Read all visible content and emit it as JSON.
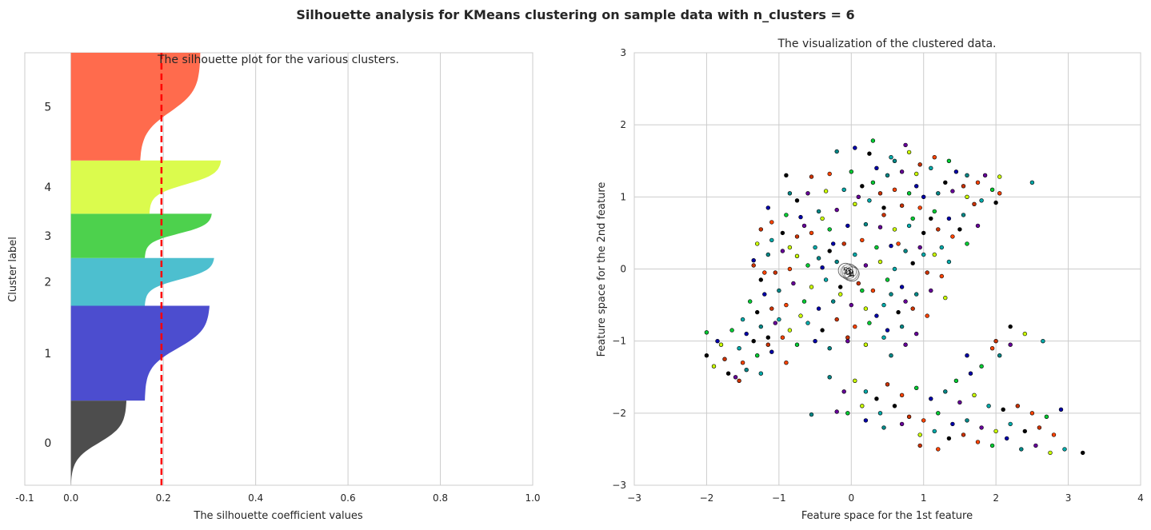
{
  "figure": {
    "suptitle": "Silhouette analysis for KMeans clustering on sample data with n_clusters = 6"
  },
  "chart_data": [
    {
      "type": "area",
      "title": "The silhouette plot for the various clusters.",
      "xlabel": "The silhouette coefficient values",
      "ylabel": "Cluster label",
      "xlim": [
        -0.1,
        1.0
      ],
      "ylim": [
        0,
        470
      ],
      "xticks": [
        -0.1,
        0.0,
        0.2,
        0.4,
        0.6,
        0.8,
        1.0
      ],
      "xtick_labels": [
        "-0.1",
        "0.0",
        "0.2",
        "0.4",
        "0.6",
        "0.8",
        "1.0"
      ],
      "grid": true,
      "average_silhouette": 0.196,
      "clusters": [
        {
          "label": "0",
          "y_lower": 0,
          "y_upper": 92,
          "color": "#4d4d4d",
          "min": 0.0,
          "max": 0.12,
          "knee": 0.5
        },
        {
          "label": "1",
          "y_lower": 92,
          "y_upper": 195,
          "color": "#4c4dcf",
          "min": 0.16,
          "max": 0.3,
          "knee": 0.55
        },
        {
          "label": "2",
          "y_lower": 195,
          "y_upper": 247,
          "color": "#4dbfcf",
          "min": 0.16,
          "max": 0.31,
          "knee": 0.55
        },
        {
          "label": "3",
          "y_lower": 247,
          "y_upper": 295,
          "color": "#4dd14d",
          "min": 0.16,
          "max": 0.305,
          "knee": 0.55
        },
        {
          "label": "4",
          "y_lower": 295,
          "y_upper": 353,
          "color": "#dbfb4d",
          "min": 0.17,
          "max": 0.325,
          "knee": 0.55
        },
        {
          "label": "5",
          "y_lower": 353,
          "y_upper": 470,
          "color": "#ff6b4d",
          "min": 0.15,
          "max": 0.28,
          "knee": 0.45
        }
      ]
    },
    {
      "type": "scatter",
      "title": "The visualization of the clustered data.",
      "xlabel": "Feature space for the 1st feature",
      "ylabel": "Feature space for the 2nd feature",
      "xlim": [
        -3,
        4
      ],
      "ylim": [
        -3,
        3
      ],
      "xticks": [
        -3,
        -2,
        -1,
        0,
        1,
        2,
        3,
        4
      ],
      "xtick_labels": [
        "−3",
        "−2",
        "−1",
        "0",
        "1",
        "2",
        "3",
        "4"
      ],
      "yticks": [
        -3,
        -2,
        -1,
        0,
        1,
        2,
        3
      ],
      "ytick_labels": [
        "−3",
        "−2",
        "−1",
        "0",
        "1",
        "2",
        "3"
      ],
      "grid": true,
      "point_colors": [
        "#000000",
        "#0000aa",
        "#00aaaa",
        "#00cc33",
        "#ccff00",
        "#ff4400",
        "#660099",
        "#cc3300",
        "#008888"
      ],
      "centers": [
        {
          "label": "0",
          "x": -0.05,
          "y": -0.04
        },
        {
          "label": "1",
          "x": -0.02,
          "y": -0.06
        },
        {
          "label": "2",
          "x": 0.0,
          "y": -0.05
        },
        {
          "label": "3",
          "x": -0.03,
          "y": -0.03
        },
        {
          "label": "4",
          "x": 0.01,
          "y": -0.07
        },
        {
          "label": "5",
          "x": -0.08,
          "y": -0.02
        }
      ],
      "points": [
        [
          0.3,
          1.78
        ],
        [
          0.05,
          1.68
        ],
        [
          -0.2,
          1.63
        ],
        [
          0.75,
          1.72
        ],
        [
          0.8,
          1.62
        ],
        [
          0.55,
          1.55
        ],
        [
          0.25,
          1.6
        ],
        [
          0.95,
          1.45
        ],
        [
          1.15,
          1.55
        ],
        [
          1.35,
          1.5
        ],
        [
          1.45,
          1.35
        ],
        [
          1.6,
          1.3
        ],
        [
          1.85,
          1.3
        ],
        [
          2.05,
          1.28
        ],
        [
          2.5,
          1.2
        ],
        [
          -0.9,
          1.3
        ],
        [
          -0.55,
          1.28
        ],
        [
          -0.3,
          1.32
        ],
        [
          0.0,
          1.35
        ],
        [
          0.35,
          1.4
        ],
        [
          0.5,
          1.3
        ],
        [
          0.7,
          1.35
        ],
        [
          0.9,
          1.32
        ],
        [
          1.1,
          1.4
        ],
        [
          1.3,
          1.2
        ],
        [
          1.55,
          1.15
        ],
        [
          1.75,
          1.2
        ],
        [
          1.95,
          1.1
        ],
        [
          -1.15,
          0.85
        ],
        [
          -0.85,
          1.05
        ],
        [
          -0.6,
          1.05
        ],
        [
          -0.35,
          1.08
        ],
        [
          -0.1,
          1.1
        ],
        [
          0.15,
          1.15
        ],
        [
          0.4,
          1.05
        ],
        [
          0.6,
          1.1
        ],
        [
          0.8,
          1.05
        ],
        [
          1.0,
          1.0
        ],
        [
          1.2,
          1.05
        ],
        [
          1.4,
          1.08
        ],
        [
          1.6,
          1.0
        ],
        [
          1.8,
          0.95
        ],
        [
          2.0,
          0.92
        ],
        [
          -1.25,
          0.55
        ],
        [
          -1.1,
          0.65
        ],
        [
          -0.9,
          0.75
        ],
        [
          -0.7,
          0.72
        ],
        [
          -0.45,
          0.8
        ],
        [
          -0.2,
          0.82
        ],
        [
          0.05,
          0.9
        ],
        [
          0.25,
          0.95
        ],
        [
          0.45,
          0.85
        ],
        [
          0.7,
          0.88
        ],
        [
          0.95,
          0.85
        ],
        [
          1.15,
          0.8
        ],
        [
          1.35,
          0.7
        ],
        [
          1.55,
          0.75
        ],
        [
          1.75,
          0.6
        ],
        [
          -1.3,
          0.35
        ],
        [
          -1.1,
          0.4
        ],
        [
          -0.95,
          0.5
        ],
        [
          -0.75,
          0.45
        ],
        [
          -0.55,
          0.5
        ],
        [
          -0.3,
          0.55
        ],
        [
          -0.05,
          0.6
        ],
        [
          0.2,
          0.62
        ],
        [
          0.4,
          0.58
        ],
        [
          0.6,
          0.55
        ],
        [
          0.8,
          0.6
        ],
        [
          1.0,
          0.5
        ],
        [
          1.2,
          0.55
        ],
        [
          1.4,
          0.45
        ],
        [
          1.6,
          0.35
        ],
        [
          -1.35,
          0.12
        ],
        [
          -1.15,
          0.2
        ],
        [
          -0.95,
          0.25
        ],
        [
          -0.75,
          0.18
        ],
        [
          -0.5,
          0.3
        ],
        [
          -0.3,
          0.25
        ],
        [
          -0.1,
          0.35
        ],
        [
          0.15,
          0.4
        ],
        [
          0.35,
          0.3
        ],
        [
          0.55,
          0.32
        ],
        [
          0.75,
          0.25
        ],
        [
          0.95,
          0.3
        ],
        [
          1.15,
          0.2
        ],
        [
          1.35,
          0.1
        ],
        [
          -1.25,
          -0.15
        ],
        [
          -1.05,
          -0.05
        ],
        [
          -0.85,
          0.0
        ],
        [
          -0.6,
          0.05
        ],
        [
          -0.4,
          0.02
        ],
        [
          -0.2,
          0.1
        ],
        [
          0.2,
          0.05
        ],
        [
          0.4,
          0.1
        ],
        [
          0.6,
          0.0
        ],
        [
          0.85,
          0.08
        ],
        [
          1.05,
          -0.05
        ],
        [
          1.25,
          -0.1
        ],
        [
          -1.4,
          -0.45
        ],
        [
          -1.2,
          -0.35
        ],
        [
          -1.0,
          -0.3
        ],
        [
          -0.8,
          -0.2
        ],
        [
          -0.55,
          -0.25
        ],
        [
          -0.35,
          -0.15
        ],
        [
          -0.15,
          -0.25
        ],
        [
          0.1,
          -0.2
        ],
        [
          0.3,
          -0.3
        ],
        [
          0.5,
          -0.15
        ],
        [
          0.7,
          -0.25
        ],
        [
          0.9,
          -0.35
        ],
        [
          1.1,
          -0.3
        ],
        [
          1.3,
          -0.4
        ],
        [
          -1.5,
          -0.7
        ],
        [
          -1.3,
          -0.6
        ],
        [
          -1.1,
          -0.55
        ],
        [
          -0.9,
          -0.5
        ],
        [
          -0.65,
          -0.45
        ],
        [
          -0.45,
          -0.55
        ],
        [
          -0.25,
          -0.45
        ],
        [
          0.0,
          -0.5
        ],
        [
          0.2,
          -0.55
        ],
        [
          0.45,
          -0.5
        ],
        [
          0.65,
          -0.6
        ],
        [
          0.85,
          -0.55
        ],
        [
          1.05,
          -0.65
        ],
        [
          -1.65,
          -0.85
        ],
        [
          -1.45,
          -0.9
        ],
        [
          -1.25,
          -0.8
        ],
        [
          -1.05,
          -0.75
        ],
        [
          -0.85,
          -0.85
        ],
        [
          -0.6,
          -0.75
        ],
        [
          -0.4,
          -0.85
        ],
        [
          -0.2,
          -0.7
        ],
        [
          0.05,
          -0.8
        ],
        [
          0.25,
          -0.75
        ],
        [
          0.5,
          -0.85
        ],
        [
          0.7,
          -0.8
        ],
        [
          0.9,
          -0.9
        ],
        [
          -1.8,
          -1.05
        ],
        [
          -1.55,
          -1.1
        ],
        [
          -1.35,
          -1.0
        ],
        [
          -1.15,
          -1.05
        ],
        [
          -0.95,
          -0.95
        ],
        [
          -0.75,
          -1.05
        ],
        [
          -0.5,
          -1.0
        ],
        [
          -0.3,
          -1.1
        ],
        [
          -0.05,
          -1.0
        ],
        [
          0.2,
          -1.05
        ],
        [
          0.45,
          -0.95
        ],
        [
          -2.0,
          -1.2
        ],
        [
          -1.75,
          -1.25
        ],
        [
          -1.5,
          -1.3
        ],
        [
          -1.3,
          -1.2
        ],
        [
          -1.1,
          -1.15
        ],
        [
          -1.45,
          -1.4
        ],
        [
          -1.6,
          -1.5
        ],
        [
          -1.9,
          -1.35
        ],
        [
          -1.25,
          -1.45
        ],
        [
          -1.7,
          -1.45
        ],
        [
          -1.55,
          -1.55
        ],
        [
          -0.9,
          -1.3
        ],
        [
          -2.0,
          -0.88
        ],
        [
          -1.85,
          -1.0
        ],
        [
          -0.55,
          -2.02
        ],
        [
          -0.2,
          -1.98
        ],
        [
          0.05,
          -1.55
        ],
        [
          0.2,
          -1.7
        ],
        [
          0.35,
          -1.8
        ],
        [
          0.5,
          -1.6
        ],
        [
          0.7,
          -1.75
        ],
        [
          0.9,
          -1.65
        ],
        [
          1.1,
          -1.8
        ],
        [
          1.3,
          -1.7
        ],
        [
          1.5,
          -1.85
        ],
        [
          1.7,
          -1.75
        ],
        [
          1.9,
          -1.9
        ],
        [
          2.1,
          -1.95
        ],
        [
          2.3,
          -1.9
        ],
        [
          2.5,
          -2.0
        ],
        [
          2.7,
          -2.05
        ],
        [
          2.9,
          -1.95
        ],
        [
          -0.3,
          -1.5
        ],
        [
          -0.1,
          -1.7
        ],
        [
          0.15,
          -1.9
        ],
        [
          0.4,
          -2.0
        ],
        [
          0.6,
          -1.9
        ],
        [
          0.8,
          -2.05
        ],
        [
          1.0,
          -2.1
        ],
        [
          1.2,
          -2.0
        ],
        [
          1.4,
          -2.15
        ],
        [
          1.6,
          -2.1
        ],
        [
          1.8,
          -2.2
        ],
        [
          2.0,
          -2.25
        ],
        [
          2.2,
          -2.15
        ],
        [
          2.4,
          -2.25
        ],
        [
          2.6,
          -2.2
        ],
        [
          2.8,
          -2.3
        ],
        [
          -0.05,
          -2.0
        ],
        [
          0.2,
          -2.1
        ],
        [
          0.45,
          -2.2
        ],
        [
          0.7,
          -2.15
        ],
        [
          0.95,
          -2.3
        ],
        [
          1.15,
          -2.25
        ],
        [
          1.35,
          -2.35
        ],
        [
          1.55,
          -2.3
        ],
        [
          1.75,
          -2.4
        ],
        [
          1.95,
          -2.45
        ],
        [
          2.15,
          -2.35
        ],
        [
          2.35,
          -2.5
        ],
        [
          2.55,
          -2.45
        ],
        [
          2.75,
          -2.55
        ],
        [
          2.95,
          -2.5
        ],
        [
          3.2,
          -2.55
        ],
        [
          0.95,
          -2.45
        ],
        [
          1.2,
          -2.5
        ],
        [
          1.45,
          -1.55
        ],
        [
          1.65,
          -1.45
        ],
        [
          2.05,
          -1.2
        ],
        [
          2.2,
          -1.05
        ],
        [
          2.4,
          -0.9
        ],
        [
          2.65,
          -1.0
        ],
        [
          2.2,
          -0.8
        ],
        [
          2.0,
          -1.0
        ],
        [
          1.95,
          -1.1
        ],
        [
          1.8,
          -1.35
        ],
        [
          1.6,
          -1.2
        ],
        [
          0.55,
          -1.2
        ],
        [
          0.75,
          -1.05
        ],
        [
          -0.15,
          -0.35
        ],
        [
          0.05,
          0.2
        ],
        [
          -0.75,
          0.95
        ],
        [
          -1.35,
          0.05
        ],
        [
          -1.2,
          -0.05
        ],
        [
          0.3,
          1.2
        ],
        [
          0.9,
          1.15
        ],
        [
          0.6,
          1.5
        ],
        [
          0.1,
          1.0
        ],
        [
          -0.4,
          0.7
        ],
        [
          1.25,
          0.3
        ],
        [
          1.5,
          0.55
        ],
        [
          1.7,
          0.9
        ],
        [
          2.05,
          1.05
        ],
        [
          0.15,
          -0.3
        ],
        [
          0.35,
          -0.65
        ],
        [
          0.55,
          -0.35
        ],
        [
          0.75,
          -0.45
        ],
        [
          -0.7,
          -0.65
        ],
        [
          -1.0,
          -0.7
        ],
        [
          -1.15,
          -0.95
        ],
        [
          0.45,
          0.75
        ],
        [
          0.65,
          0.35
        ],
        [
          0.85,
          0.7
        ],
        [
          -0.25,
          0.35
        ],
        [
          -0.45,
          0.15
        ],
        [
          -0.65,
          0.6
        ],
        [
          -0.85,
          0.3
        ],
        [
          1.0,
          0.2
        ],
        [
          1.1,
          0.7
        ],
        [
          -0.05,
          -0.95
        ]
      ]
    }
  ]
}
